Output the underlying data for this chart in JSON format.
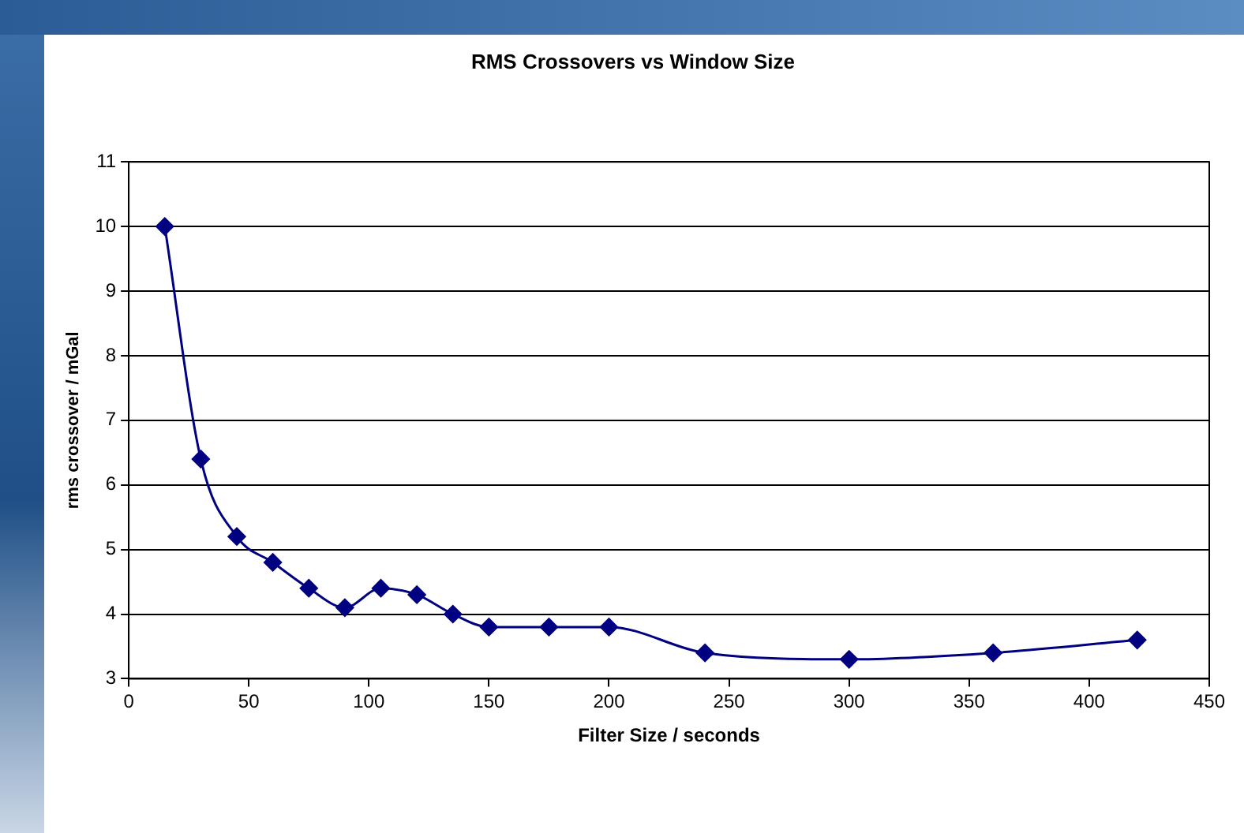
{
  "chart_data": {
    "type": "line",
    "title": "RMS Crossovers vs Window Size",
    "xlabel": "Filter Size / seconds",
    "ylabel": "rms crossover / mGal",
    "x": [
      15,
      30,
      45,
      60,
      75,
      90,
      105,
      120,
      135,
      150,
      175,
      200,
      240,
      300,
      360,
      420
    ],
    "series": [
      {
        "color": "#000080",
        "values": [
          10,
          6.4,
          5.2,
          4.8,
          4.4,
          4.1,
          4.4,
          4.3,
          4.0,
          3.8,
          3.8,
          3.8,
          3.4,
          3.3,
          3.4,
          3.6
        ]
      }
    ],
    "xlim": [
      0,
      450
    ],
    "xticks": [
      0,
      50,
      100,
      150,
      200,
      250,
      300,
      350,
      400,
      450
    ],
    "ylim": [
      3,
      11
    ],
    "yticks": [
      3,
      4,
      5,
      6,
      7,
      8,
      9,
      10,
      11
    ],
    "grid": "y",
    "legend": false,
    "marker": "diamond",
    "line_style": "solid"
  }
}
